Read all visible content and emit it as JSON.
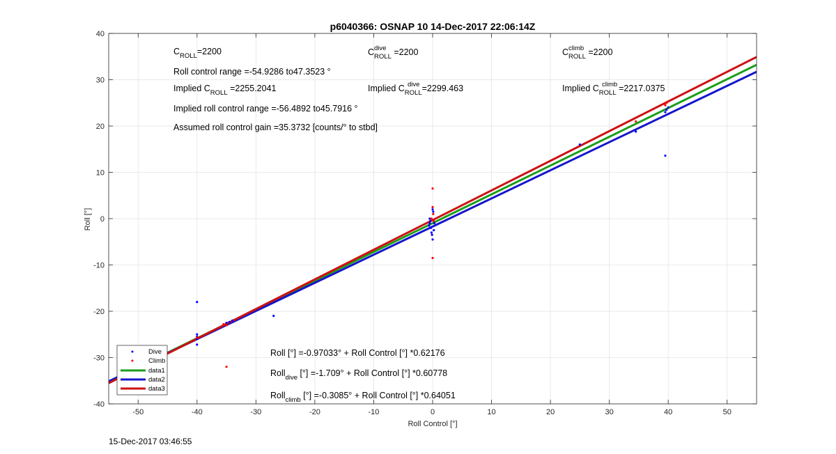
{
  "chart_data": {
    "type": "scatter",
    "title": "p6040366: OSNAP 10 14-Dec-2017 22:06:14Z",
    "xlabel": "Roll Control [°]",
    "ylabel": "Roll [°]",
    "xlim": [
      -55,
      55
    ],
    "ylim": [
      -40,
      40
    ],
    "xticks": [
      -50,
      -40,
      -30,
      -20,
      -10,
      0,
      10,
      20,
      30,
      40,
      50
    ],
    "yticks": [
      -40,
      -30,
      -20,
      -10,
      0,
      10,
      20,
      30,
      40
    ],
    "grid": true,
    "legend_position": "bottom-left",
    "series": [
      {
        "name": "Dive",
        "kind": "points",
        "color": "#0000ff",
        "points": [
          [
            -53,
            -34.5
          ],
          [
            -52.5,
            -34
          ],
          [
            -40,
            -18
          ],
          [
            -40,
            -25
          ],
          [
            -40,
            -25.5
          ],
          [
            -40,
            -26
          ],
          [
            -40,
            -27.2
          ],
          [
            -35,
            -22.5
          ],
          [
            -34.5,
            -22.3
          ],
          [
            -34,
            -22
          ],
          [
            -27,
            -21
          ],
          [
            -0.5,
            -1
          ],
          [
            -0.3,
            -2
          ],
          [
            -0.2,
            -3
          ],
          [
            -0.4,
            -0.5
          ],
          [
            0,
            -4.5
          ],
          [
            0.2,
            -2.5
          ],
          [
            -0.6,
            -1.5
          ],
          [
            0.3,
            -1
          ],
          [
            -0.1,
            -3.5
          ],
          [
            0.1,
            1.5
          ],
          [
            0,
            2
          ],
          [
            -0.5,
            0
          ],
          [
            25,
            16
          ],
          [
            34.5,
            18.8
          ],
          [
            39.5,
            13.6
          ],
          [
            39.5,
            23
          ],
          [
            39.7,
            23.5
          ],
          [
            40,
            24
          ]
        ]
      },
      {
        "name": "Climb",
        "kind": "points",
        "color": "#ff0000",
        "points": [
          [
            -52,
            -33.5
          ],
          [
            -40,
            -25.7
          ],
          [
            -35.5,
            -22.8
          ],
          [
            -35,
            -32
          ],
          [
            -35,
            -23
          ],
          [
            0,
            6.5
          ],
          [
            0,
            -8.5
          ],
          [
            0,
            2.5
          ],
          [
            0.1,
            1
          ],
          [
            -0.2,
            0
          ],
          [
            0.2,
            -0.5
          ],
          [
            34.5,
            21
          ],
          [
            39.5,
            24.5
          ],
          [
            39.7,
            25
          ]
        ]
      },
      {
        "name": "data1",
        "kind": "line",
        "color": "#1a9e1a",
        "intercept": -0.97033,
        "slope": 0.62176
      },
      {
        "name": "data2",
        "kind": "line",
        "color": "#1515cc",
        "intercept": -1.709,
        "slope": 0.60778
      },
      {
        "name": "data3",
        "kind": "line",
        "color": "#cc1212",
        "intercept": -0.3085,
        "slope": 0.64051
      }
    ]
  },
  "annotations": {
    "c_roll": "=2200",
    "c_roll_dive": " =2200",
    "c_roll_climb": " =2200",
    "roll_control_range": "Roll control range =-54.9286 to47.3523 °",
    "implied_prefix": "Implied C",
    "implied_c_roll": " =2255.2041",
    "implied_c_roll_dive": "=2299.463",
    "implied_c_roll_climb": " =2217.0375",
    "implied_roll_range": "Implied roll control range =-56.4892 to45.7916 °",
    "assumed_gain": "Assumed roll control gain =35.3732 [counts/° to stbd]",
    "sub_roll": "ROLL",
    "sup_dive": "dive",
    "sup_climb": "climb",
    "fit_all": "Roll [°] =-0.97033° + Roll Control [°] *0.62176",
    "fit_dive_prefix": "Roll",
    "fit_dive_rest": " [°] =-1.709° + Roll Control [°] *0.60778",
    "fit_climb_prefix": "Roll",
    "fit_climb_rest": " [°] =-0.3085° + Roll Control [°] *0.64051"
  },
  "footer_timestamp": "15-Dec-2017 03:46:55"
}
